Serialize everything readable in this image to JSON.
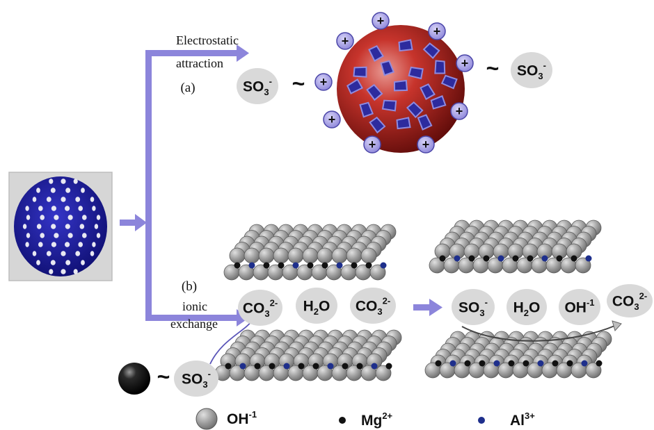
{
  "labels": {
    "electrostatic_line1": "Electrostatic",
    "electrostatic_line2": "attraction",
    "path_a": "(a)",
    "path_b": "(b)",
    "ionic_line1": "ionic",
    "ionic_line2": "exchange"
  },
  "ions": {
    "so3": {
      "base": "SO",
      "sub": "3",
      "sup": "-"
    },
    "co3": {
      "base": "CO",
      "sub": "3",
      "sup": "2-"
    },
    "h2o": {
      "base": "H",
      "sub": "2",
      "tail": "O"
    },
    "oh": {
      "base": "OH",
      "sup": "-1"
    }
  },
  "tilde": "~",
  "plus": "+",
  "legend": {
    "oh": {
      "base": "OH",
      "sup": "-1"
    },
    "mg": {
      "base": "Mg",
      "sup": "2+"
    },
    "al": {
      "base": "Al",
      "sup": "3+"
    }
  },
  "colors": {
    "arrow": "#8C85DB",
    "ion_bubble": "#D9D9D9",
    "sphere_red": "#B0211C",
    "plus_fill": "#A9A3E6",
    "crystal_blue": "#2D2B9E",
    "mg_dot": "#111111",
    "al_dot": "#1E2F8C",
    "layer_ball": "#9B9B9B",
    "bead_blue": "#1A1A8C"
  }
}
